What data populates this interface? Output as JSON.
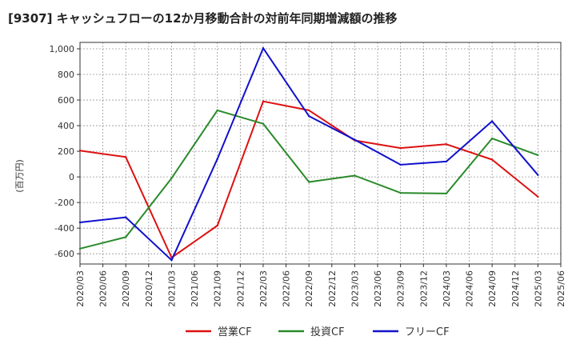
{
  "chart_data": {
    "type": "line",
    "title": "[9307]  キャッシュフローの12か月移動合計の対前年同期増減額の推移",
    "ylabel": "(百万円)",
    "xlabel": "",
    "ylim": [
      -680,
      1050
    ],
    "yticks": [
      -600,
      -400,
      -200,
      0,
      200,
      400,
      600,
      800,
      1000
    ],
    "ytick_labels": [
      "-600",
      "-400",
      "-200",
      "0",
      "200",
      "400",
      "600",
      "800",
      "1,000"
    ],
    "categories": [
      "2020/03",
      "2020/06",
      "2020/09",
      "2020/12",
      "2021/03",
      "2021/06",
      "2021/09",
      "2021/12",
      "2022/03",
      "2022/06",
      "2022/09",
      "2022/12",
      "2023/03",
      "2023/06",
      "2023/09",
      "2023/12",
      "2024/03",
      "2024/06",
      "2024/09",
      "2024/12",
      "2025/03",
      "2025/06"
    ],
    "series": [
      {
        "name": "営業CF",
        "color": "#dd1111",
        "values": [
          205,
          null,
          155,
          null,
          -630,
          null,
          -380,
          null,
          590,
          null,
          520,
          null,
          285,
          null,
          225,
          null,
          255,
          null,
          135,
          null,
          -155,
          null
        ]
      },
      {
        "name": "投資CF",
        "color": "#2a8a2a",
        "values": [
          -560,
          null,
          -470,
          null,
          -10,
          null,
          520,
          null,
          415,
          null,
          -40,
          null,
          10,
          null,
          -125,
          null,
          -130,
          null,
          300,
          null,
          170,
          null
        ]
      },
      {
        "name": "フリーCF",
        "color": "#1111cc",
        "values": [
          -355,
          null,
          -315,
          null,
          -650,
          null,
          140,
          null,
          1005,
          null,
          475,
          null,
          290,
          null,
          95,
          null,
          120,
          null,
          435,
          null,
          15,
          null
        ]
      }
    ],
    "grid": true,
    "legend_position": "bottom"
  }
}
